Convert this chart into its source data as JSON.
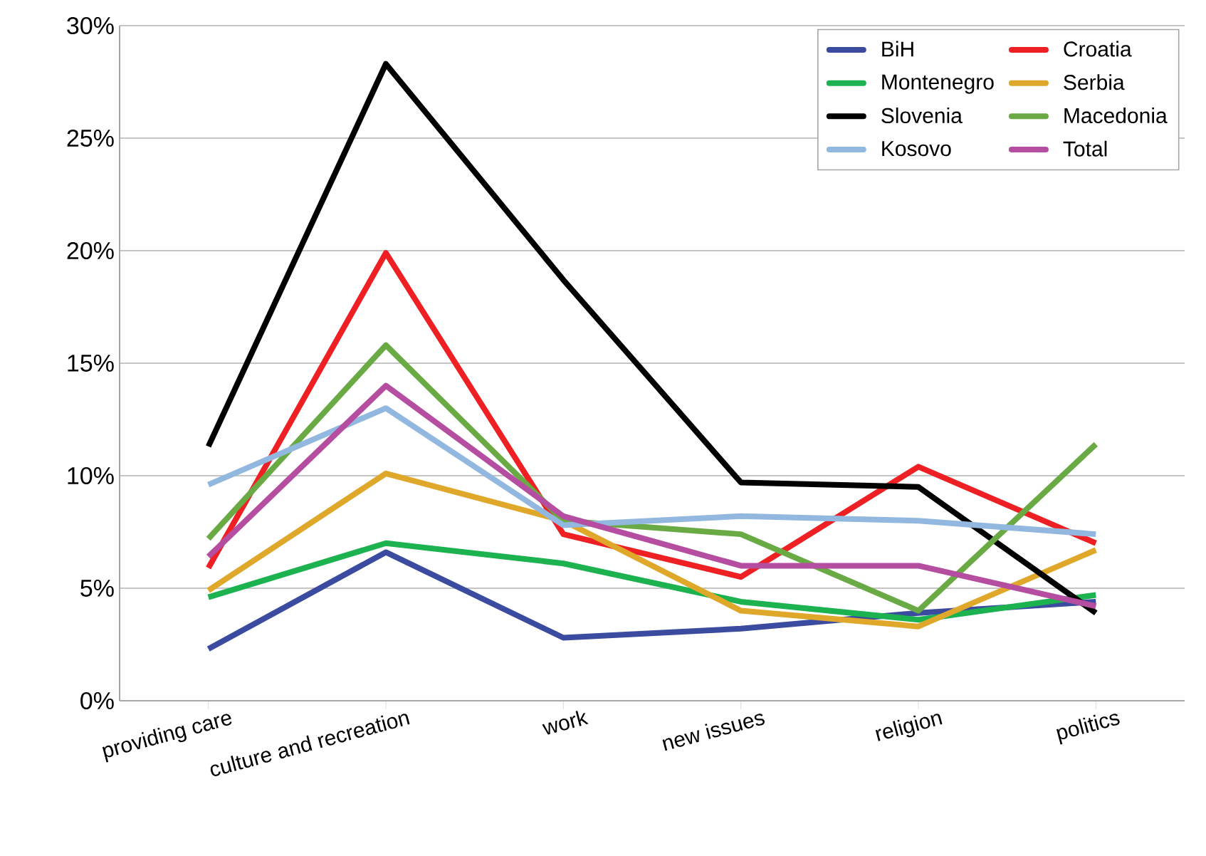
{
  "chart_data": {
    "type": "line",
    "categories": [
      "providing care",
      "culture and recreation",
      "work",
      "new issues",
      "religion",
      "politics"
    ],
    "series": [
      {
        "name": "BiH",
        "color": "#3a4ba0",
        "values": [
          2.3,
          6.6,
          2.8,
          3.2,
          3.9,
          4.4
        ]
      },
      {
        "name": "Croatia",
        "color": "#ee2024",
        "values": [
          5.9,
          19.9,
          7.4,
          5.5,
          10.4,
          7.0
        ]
      },
      {
        "name": "Montenegro",
        "color": "#1db250",
        "values": [
          4.6,
          7.0,
          6.1,
          4.4,
          3.6,
          4.7
        ]
      },
      {
        "name": "Serbia",
        "color": "#e0a82a",
        "values": [
          4.9,
          10.1,
          8.0,
          4.0,
          3.3,
          6.7
        ]
      },
      {
        "name": "Slovenia",
        "color": "#000000",
        "values": [
          11.3,
          28.3,
          18.7,
          9.7,
          9.5,
          3.9
        ]
      },
      {
        "name": "Macedonia",
        "color": "#6aaa45",
        "values": [
          7.2,
          15.8,
          8.0,
          7.4,
          4.0,
          11.4
        ]
      },
      {
        "name": "Kosovo",
        "color": "#93b8e0",
        "values": [
          9.6,
          13.0,
          7.8,
          8.2,
          8.0,
          7.4
        ]
      },
      {
        "name": "Total",
        "color": "#b54ea0",
        "values": [
          6.4,
          14.0,
          8.2,
          6.0,
          6.0,
          4.2
        ]
      }
    ],
    "ylim": [
      0,
      30
    ],
    "yticks": [
      {
        "value": 0,
        "label": "0%"
      },
      {
        "value": 5,
        "label": "5%"
      },
      {
        "value": 10,
        "label": "10%"
      },
      {
        "value": 15,
        "label": "15%"
      },
      {
        "value": 20,
        "label": "20%"
      },
      {
        "value": 25,
        "label": "25%"
      },
      {
        "value": 30,
        "label": "30%"
      }
    ],
    "grid": "y",
    "legend": "top right",
    "marker": "none",
    "line_style": "solid"
  }
}
